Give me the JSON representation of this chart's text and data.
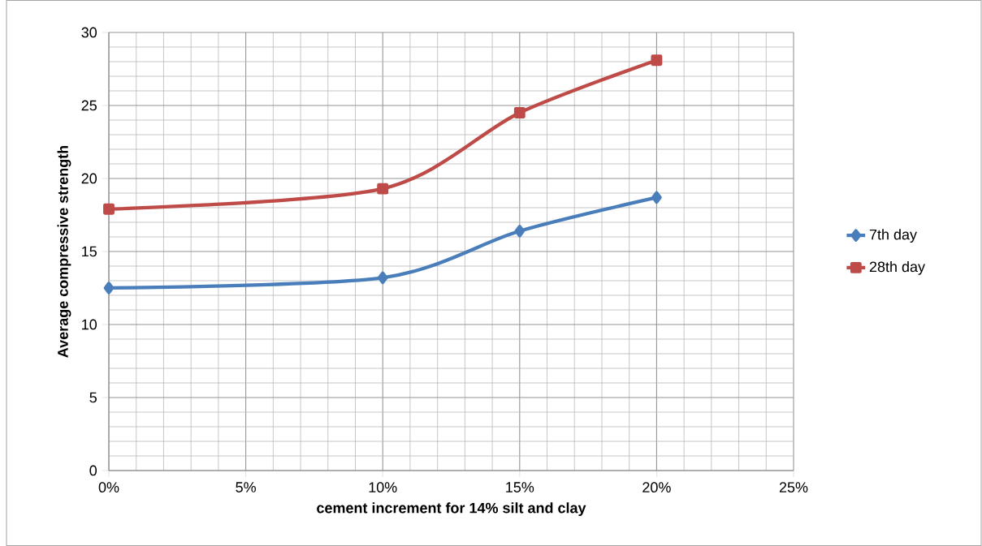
{
  "chart_data": {
    "type": "line",
    "xlabel": "cement increment for 14% silt and clay",
    "ylabel": "Average compressive strength",
    "x": [
      0,
      10,
      15,
      20
    ],
    "series": [
      {
        "name": "7th day",
        "color": "#4a7ebb",
        "marker": "diamond",
        "values": [
          12.5,
          13.2,
          16.4,
          18.7
        ]
      },
      {
        "name": "28th day",
        "color": "#be4b48",
        "marker": "square",
        "values": [
          17.9,
          19.3,
          24.5,
          28.1
        ]
      }
    ],
    "xlim": [
      0,
      25
    ],
    "xticks": [
      {
        "value": 0,
        "label": "0%"
      },
      {
        "value": 5,
        "label": "5%"
      },
      {
        "value": 10,
        "label": "10%"
      },
      {
        "value": 15,
        "label": "15%"
      },
      {
        "value": 20,
        "label": "20%"
      },
      {
        "value": 25,
        "label": "25%"
      }
    ],
    "ylim": [
      0,
      30
    ],
    "yticks": [
      0,
      5,
      10,
      15,
      20,
      25,
      30
    ],
    "grid": true,
    "legend": "right"
  }
}
